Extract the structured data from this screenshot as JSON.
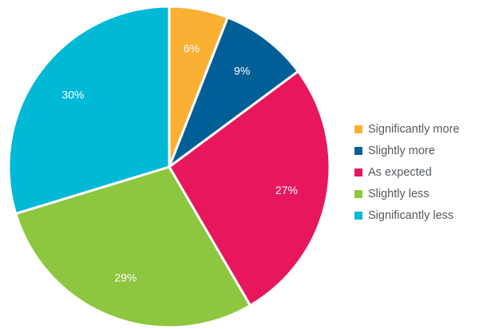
{
  "chart_data": {
    "type": "pie",
    "title": "",
    "start_angle_deg": 0,
    "direction": "clockwise",
    "legend_position": "right",
    "slices": [
      {
        "label": "Significantly more",
        "value": 6,
        "display": "6%",
        "color": "#fbb034"
      },
      {
        "label": "Slightly more",
        "value": 9,
        "display": "9%",
        "color": "#005f96"
      },
      {
        "label": "As expected",
        "value": 27,
        "display": "27%",
        "color": "#e8175d"
      },
      {
        "label": "Slightly less",
        "value": 29,
        "display": "29%",
        "color": "#8dc63f"
      },
      {
        "label": "Significantly less",
        "value": 30,
        "display": "30%",
        "color": "#00b9d6"
      }
    ]
  }
}
